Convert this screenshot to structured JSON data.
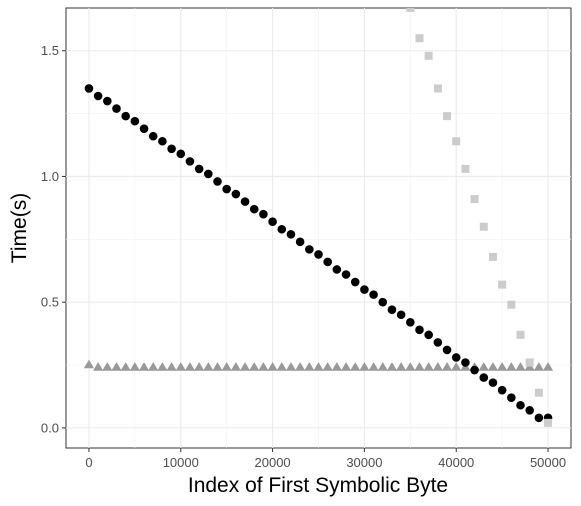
{
  "chart_data": {
    "type": "scatter",
    "title": "",
    "xlabel": "Index of First Symbolic Byte",
    "ylabel": "Time(s)",
    "xlim": [
      -2500,
      52500
    ],
    "ylim": [
      -0.08,
      1.67
    ],
    "x_ticks": [
      0,
      10000,
      20000,
      30000,
      40000,
      50000
    ],
    "y_ticks": [
      0.0,
      0.5,
      1.0,
      1.5
    ],
    "x_tick_labels": [
      "0",
      "10000",
      "20000",
      "30000",
      "40000",
      "50000"
    ],
    "y_tick_labels": [
      "0.0",
      "0.5",
      "1.0",
      "1.5"
    ],
    "grid": true,
    "legend": "none",
    "series": [
      {
        "marker": "circle",
        "color": "#000000",
        "x": [
          0,
          1000,
          2000,
          3000,
          4000,
          5000,
          6000,
          7000,
          8000,
          9000,
          10000,
          11000,
          12000,
          13000,
          14000,
          15000,
          16000,
          17000,
          18000,
          19000,
          20000,
          21000,
          22000,
          23000,
          24000,
          25000,
          26000,
          27000,
          28000,
          29000,
          30000,
          31000,
          32000,
          33000,
          34000,
          35000,
          36000,
          37000,
          38000,
          39000,
          40000,
          41000,
          42000,
          43000,
          44000,
          45000,
          46000,
          47000,
          48000,
          49000,
          50000
        ],
        "y": [
          1.35,
          1.32,
          1.3,
          1.27,
          1.24,
          1.22,
          1.19,
          1.16,
          1.14,
          1.11,
          1.09,
          1.06,
          1.03,
          1.01,
          0.98,
          0.95,
          0.93,
          0.9,
          0.87,
          0.85,
          0.82,
          0.79,
          0.77,
          0.74,
          0.71,
          0.69,
          0.66,
          0.63,
          0.61,
          0.58,
          0.55,
          0.53,
          0.5,
          0.47,
          0.45,
          0.42,
          0.39,
          0.37,
          0.34,
          0.31,
          0.28,
          0.26,
          0.23,
          0.2,
          0.18,
          0.15,
          0.12,
          0.09,
          0.07,
          0.04,
          0.04
        ]
      },
      {
        "marker": "triangle",
        "color": "#999999",
        "x": [
          0,
          1000,
          2000,
          3000,
          4000,
          5000,
          6000,
          7000,
          8000,
          9000,
          10000,
          11000,
          12000,
          13000,
          14000,
          15000,
          16000,
          17000,
          18000,
          19000,
          20000,
          21000,
          22000,
          23000,
          24000,
          25000,
          26000,
          27000,
          28000,
          29000,
          30000,
          31000,
          32000,
          33000,
          34000,
          35000,
          36000,
          37000,
          38000,
          39000,
          40000,
          41000,
          42000,
          43000,
          44000,
          45000,
          46000,
          47000,
          48000,
          49000,
          50000
        ],
        "y": [
          0.25,
          0.24,
          0.24,
          0.24,
          0.24,
          0.24,
          0.24,
          0.24,
          0.24,
          0.24,
          0.24,
          0.24,
          0.24,
          0.24,
          0.24,
          0.24,
          0.24,
          0.24,
          0.24,
          0.24,
          0.24,
          0.24,
          0.24,
          0.24,
          0.24,
          0.24,
          0.24,
          0.24,
          0.24,
          0.24,
          0.24,
          0.24,
          0.24,
          0.24,
          0.24,
          0.24,
          0.24,
          0.24,
          0.24,
          0.24,
          0.24,
          0.24,
          0.24,
          0.24,
          0.24,
          0.24,
          0.24,
          0.24,
          0.24,
          0.24,
          0.24
        ]
      },
      {
        "marker": "square",
        "color": "#cccccc",
        "x": [
          35000,
          36000,
          37000,
          38000,
          39000,
          40000,
          41000,
          42000,
          43000,
          44000,
          45000,
          46000,
          47000,
          48000,
          49000,
          50000
        ],
        "y": [
          1.67,
          1.55,
          1.48,
          1.35,
          1.24,
          1.14,
          1.03,
          0.91,
          0.8,
          0.68,
          0.57,
          0.49,
          0.37,
          0.26,
          0.14,
          0.02
        ]
      }
    ]
  }
}
